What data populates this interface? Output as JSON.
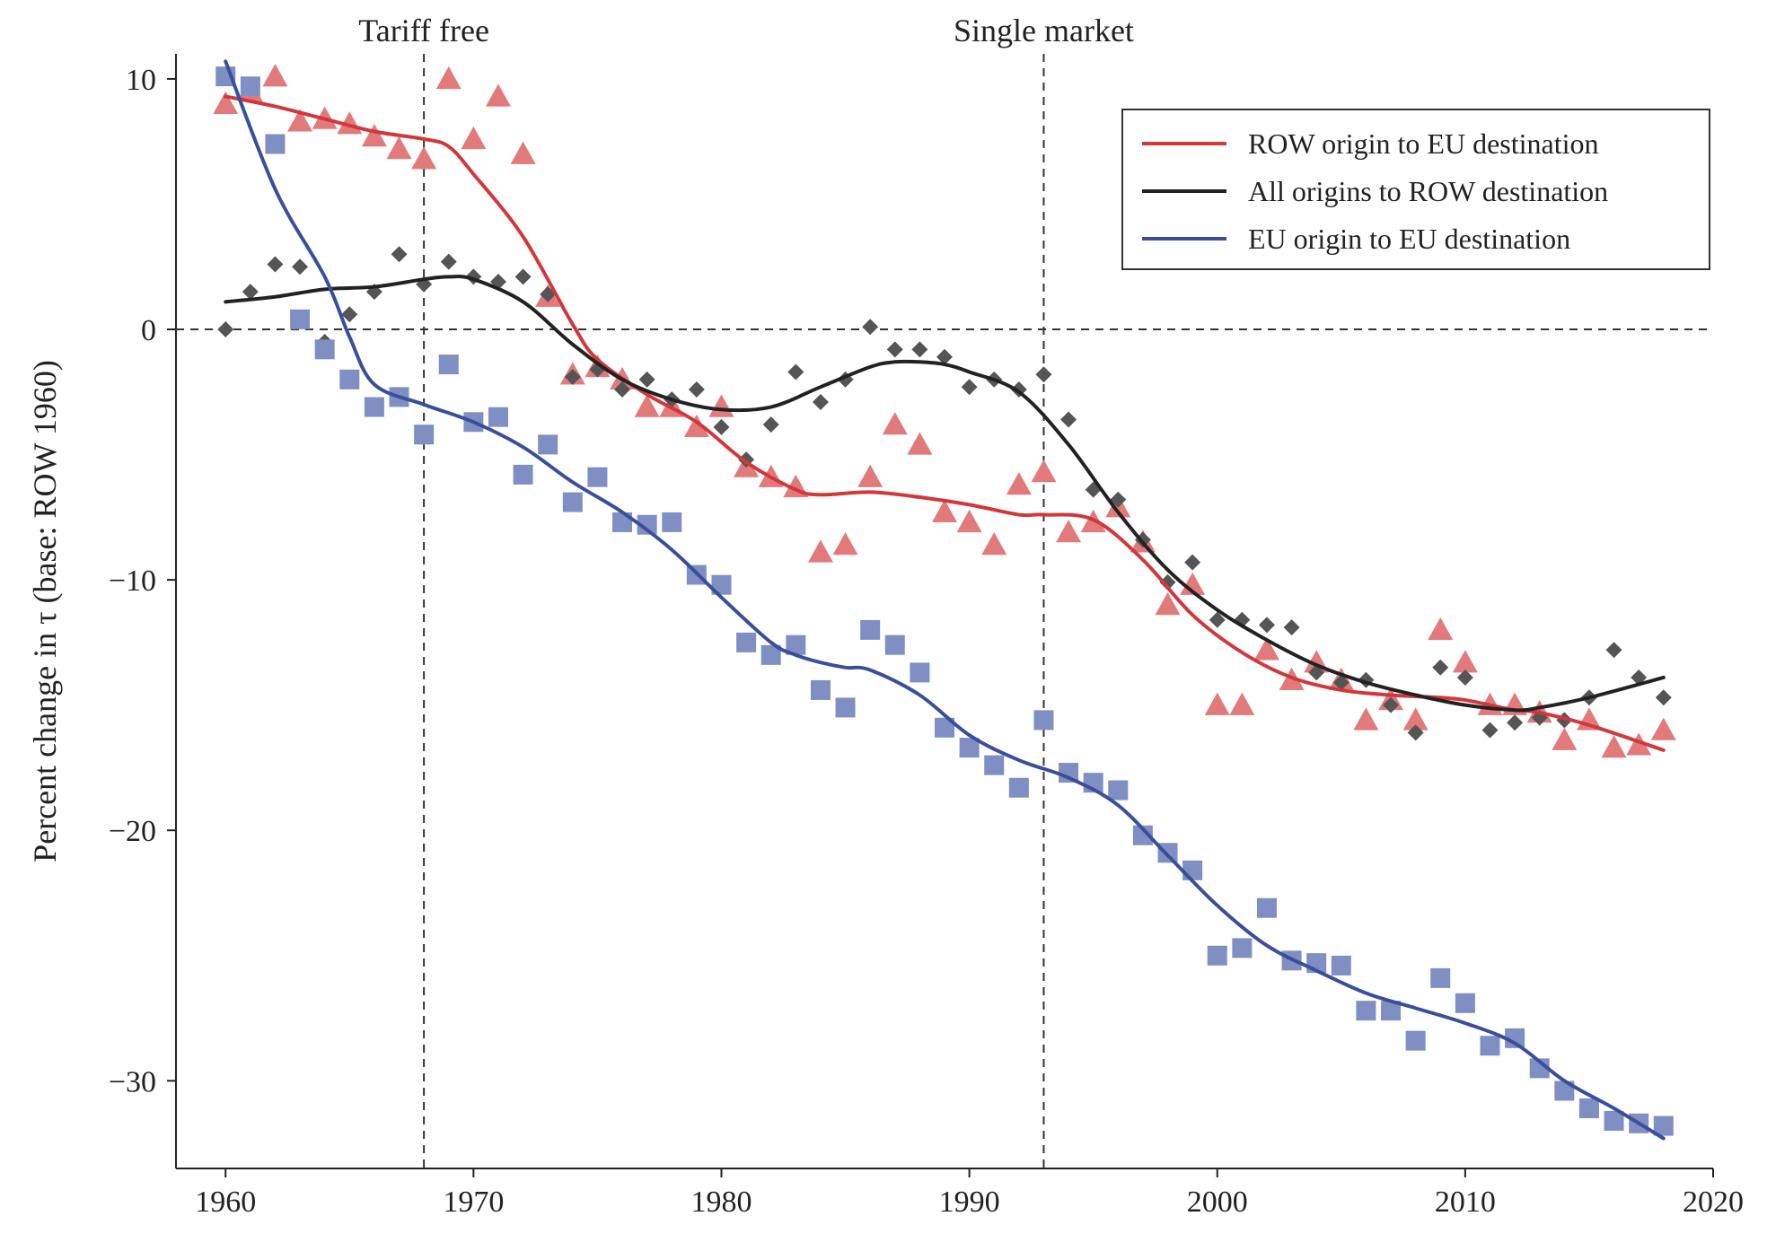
{
  "chart_data": {
    "type": "scatter",
    "title": "",
    "xlabel": "",
    "ylabel": "Percent change in τ (base: ROW 1960)",
    "xlim": [
      1958,
      2020
    ],
    "ylim": [
      -33.5,
      11
    ],
    "xticks": [
      1960,
      1970,
      1980,
      1990,
      2000,
      2010,
      2020
    ],
    "xtick_labels": [
      "1960",
      "1970",
      "1980",
      "1990",
      "2000",
      "2010",
      "2020"
    ],
    "yticks": [
      10,
      0,
      -10,
      -20,
      -30
    ],
    "ytick_labels": [
      "10",
      "0",
      "−10",
      "−20",
      "−30"
    ],
    "reference_lines": [
      {
        "orientation": "horizontal",
        "value": 0,
        "style": "dashed"
      },
      {
        "orientation": "vertical",
        "value": 1968,
        "style": "dashed",
        "label": "Tariff free"
      },
      {
        "orientation": "vertical",
        "value": 1993,
        "style": "dashed",
        "label": "Single market"
      }
    ],
    "legend_position": "top-right",
    "grid": false,
    "series": [
      {
        "name": "ROW origin to EU destination",
        "color": "#d3373b",
        "marker": "triangle",
        "marker_color": "#e27a7c",
        "points_x": [
          1960,
          1961,
          1962,
          1963,
          1964,
          1965,
          1966,
          1967,
          1968,
          1969,
          1970,
          1971,
          1972,
          1973,
          1974,
          1975,
          1976,
          1977,
          1978,
          1979,
          1980,
          1981,
          1982,
          1983,
          1984,
          1985,
          1986,
          1987,
          1988,
          1989,
          1990,
          1991,
          1992,
          1993,
          1994,
          1995,
          1996,
          1997,
          1998,
          1999,
          2000,
          2001,
          2002,
          2003,
          2004,
          2005,
          2006,
          2007,
          2008,
          2009,
          2010,
          2011,
          2012,
          2013,
          2014,
          2015,
          2016,
          2017,
          2018
        ],
        "points_y": [
          9.0,
          9.5,
          10.1,
          8.3,
          8.4,
          8.2,
          7.7,
          7.2,
          6.8,
          10.0,
          7.6,
          9.3,
          7.0,
          1.3,
          -1.8,
          -1.5,
          -2.0,
          -3.1,
          -3.1,
          -3.9,
          -3.1,
          -5.5,
          -5.9,
          -6.3,
          -8.9,
          -8.6,
          -5.9,
          -3.8,
          -4.6,
          -7.3,
          -7.7,
          -8.6,
          -6.2,
          -5.7,
          -8.1,
          -7.7,
          -7.1,
          -8.5,
          -11.0,
          -10.2,
          -15.0,
          -15.0,
          -12.8,
          -14.0,
          -13.3,
          -14.0,
          -15.6,
          -14.8,
          -15.6,
          -12.0,
          -13.3,
          -15.0,
          -15.0,
          -15.3,
          -16.4,
          -15.6,
          -16.7,
          -16.6,
          -16.0
        ],
        "trend_x": [
          1960,
          1962,
          1964,
          1966,
          1968,
          1969,
          1970,
          1972,
          1974,
          1975,
          1977,
          1979,
          1981,
          1983,
          1984,
          1986,
          1988,
          1990,
          1992,
          1993,
          1995,
          1997,
          1999,
          2001,
          2003,
          2005,
          2007,
          2009,
          2010,
          2011,
          2012,
          2013,
          2015,
          2018
        ],
        "trend_y": [
          9.3,
          8.9,
          8.4,
          7.9,
          7.6,
          7.3,
          6.2,
          3.7,
          0.2,
          -1.2,
          -2.6,
          -3.7,
          -5.3,
          -6.4,
          -6.6,
          -6.5,
          -6.7,
          -7.0,
          -7.4,
          -7.4,
          -7.6,
          -9.2,
          -11.4,
          -12.9,
          -13.9,
          -14.4,
          -14.6,
          -14.7,
          -14.8,
          -15.0,
          -15.2,
          -15.3,
          -15.8,
          -16.8
        ]
      },
      {
        "name": "All origins to ROW destination",
        "color": "#222222",
        "marker": "diamond",
        "marker_color": "#555555",
        "points_x": [
          1960,
          1961,
          1962,
          1963,
          1964,
          1965,
          1966,
          1967,
          1968,
          1969,
          1970,
          1971,
          1972,
          1973,
          1974,
          1975,
          1976,
          1977,
          1978,
          1979,
          1980,
          1981,
          1982,
          1983,
          1984,
          1985,
          1986,
          1987,
          1988,
          1989,
          1990,
          1991,
          1992,
          1993,
          1994,
          1995,
          1996,
          1997,
          1998,
          1999,
          2000,
          2001,
          2002,
          2003,
          2004,
          2005,
          2006,
          2007,
          2008,
          2009,
          2010,
          2011,
          2012,
          2013,
          2014,
          2015,
          2016,
          2017,
          2018
        ],
        "points_y": [
          0.0,
          1.5,
          2.6,
          2.5,
          -0.5,
          0.6,
          1.5,
          3.0,
          1.8,
          2.7,
          2.1,
          1.9,
          2.1,
          1.4,
          -1.9,
          -1.6,
          -2.4,
          -2.0,
          -2.8,
          -2.4,
          -3.9,
          -5.2,
          -3.8,
          -1.7,
          -2.9,
          -2.0,
          0.1,
          -0.8,
          -0.8,
          -1.1,
          -2.3,
          -2.0,
          -2.4,
          -1.8,
          -3.6,
          -6.4,
          -6.8,
          -8.4,
          -10.1,
          -9.3,
          -11.6,
          -11.6,
          -11.8,
          -11.9,
          -13.7,
          -14.1,
          -14.0,
          -15.0,
          -16.1,
          -13.5,
          -13.9,
          -16.0,
          -15.7,
          -15.5,
          -15.6,
          -14.7,
          -12.8,
          -13.9,
          -14.7
        ],
        "trend_x": [
          1960,
          1962,
          1964,
          1966,
          1968,
          1969,
          1970,
          1972,
          1974,
          1976,
          1978,
          1980,
          1982,
          1984,
          1986,
          1987,
          1988,
          1989,
          1990,
          1992,
          1994,
          1996,
          1998,
          2000,
          2002,
          2004,
          2006,
          2008,
          2010,
          2012,
          2013,
          2015,
          2018
        ],
        "trend_y": [
          1.1,
          1.3,
          1.6,
          1.7,
          2.0,
          2.1,
          2.0,
          1.1,
          -0.6,
          -2.0,
          -2.8,
          -3.2,
          -3.1,
          -2.3,
          -1.5,
          -1.3,
          -1.3,
          -1.4,
          -1.7,
          -2.5,
          -4.6,
          -7.3,
          -9.6,
          -11.2,
          -12.4,
          -13.4,
          -14.1,
          -14.6,
          -15.0,
          -15.2,
          -15.1,
          -14.7,
          -13.9
        ]
      },
      {
        "name": "EU origin to EU destination",
        "color": "#3a4f9c",
        "marker": "square",
        "marker_color": "#7f8fc3",
        "points_x": [
          1960,
          1961,
          1962,
          1963,
          1964,
          1965,
          1966,
          1967,
          1968,
          1969,
          1970,
          1971,
          1972,
          1973,
          1974,
          1975,
          1976,
          1977,
          1978,
          1979,
          1980,
          1981,
          1982,
          1983,
          1984,
          1985,
          1986,
          1987,
          1988,
          1989,
          1990,
          1991,
          1992,
          1993,
          1994,
          1995,
          1996,
          1997,
          1998,
          1999,
          2000,
          2001,
          2002,
          2003,
          2004,
          2005,
          2006,
          2007,
          2008,
          2009,
          2010,
          2011,
          2012,
          2013,
          2014,
          2015,
          2016,
          2017,
          2018
        ],
        "points_y": [
          10.1,
          9.7,
          7.4,
          0.4,
          -0.8,
          -2.0,
          -3.1,
          -2.7,
          -4.2,
          -1.4,
          -3.7,
          -3.5,
          -5.8,
          -4.6,
          -6.9,
          -5.9,
          -7.7,
          -7.8,
          -7.7,
          -9.8,
          -10.2,
          -12.5,
          -13.0,
          -12.6,
          -14.4,
          -15.1,
          -12.0,
          -12.6,
          -13.7,
          -15.9,
          -16.7,
          -17.4,
          -18.3,
          -15.6,
          -17.7,
          -18.1,
          -18.4,
          -20.2,
          -20.9,
          -21.6,
          -25.0,
          -24.7,
          -23.1,
          -25.2,
          -25.3,
          -25.4,
          -27.2,
          -27.2,
          -28.4,
          -25.9,
          -26.9,
          -28.6,
          -28.3,
          -29.5,
          -30.4,
          -31.1,
          -31.6,
          -31.7,
          -31.8
        ],
        "trend_x": [
          1960,
          1962,
          1964,
          1965,
          1966,
          1968,
          1970,
          1972,
          1974,
          1976,
          1978,
          1980,
          1982,
          1983,
          1984,
          1985,
          1986,
          1988,
          1990,
          1992,
          1994,
          1996,
          1998,
          2000,
          2002,
          2004,
          2006,
          2008,
          2010,
          2012,
          2014,
          2016,
          2018
        ],
        "trend_y": [
          10.7,
          5.6,
          2.1,
          -0.3,
          -2.2,
          -3.0,
          -3.7,
          -4.7,
          -6.1,
          -7.3,
          -8.8,
          -10.7,
          -12.5,
          -13.0,
          -13.3,
          -13.5,
          -13.6,
          -14.6,
          -16.2,
          -17.2,
          -17.9,
          -19.0,
          -21.0,
          -23.0,
          -24.6,
          -25.6,
          -26.5,
          -27.1,
          -27.7,
          -28.5,
          -30.0,
          -31.1,
          -32.3
        ]
      }
    ]
  }
}
